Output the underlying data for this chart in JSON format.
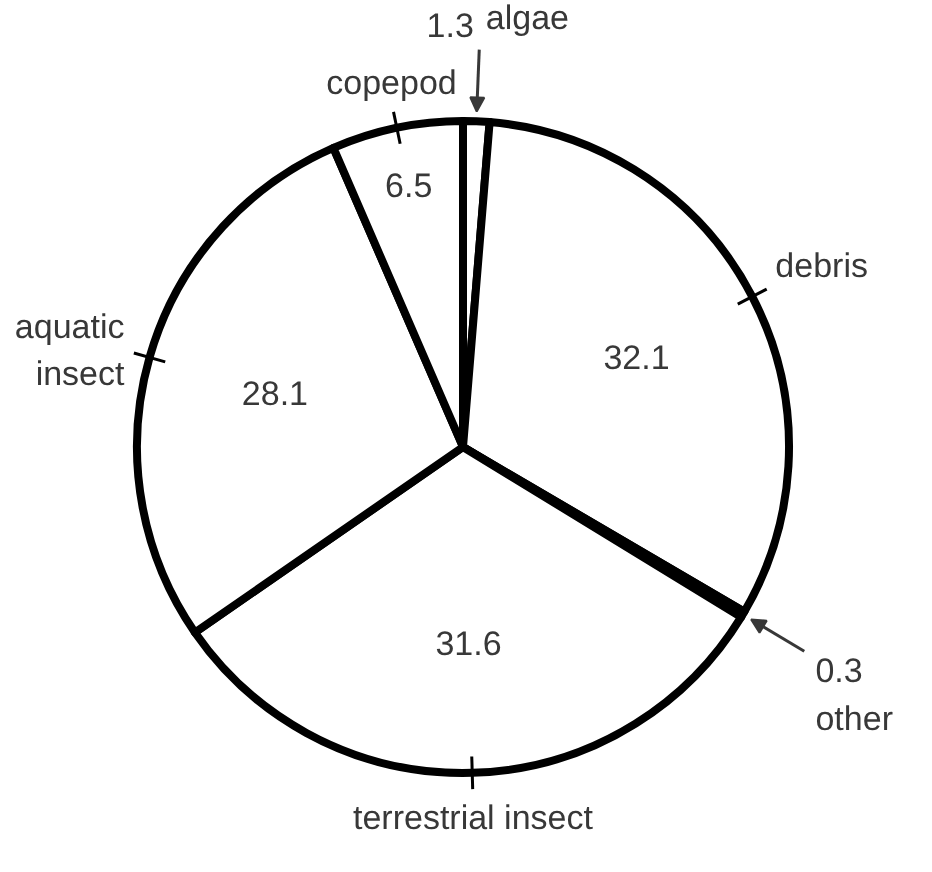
{
  "chart_data": {
    "type": "pie",
    "categories": [
      "algae",
      "debris",
      "other",
      "terrestrial insect",
      "aquatic insect",
      "copepod"
    ],
    "values": [
      1.3,
      32.1,
      0.3,
      31.6,
      28.1,
      6.5
    ],
    "colors": [
      "#ffffff",
      "#ffffff",
      "#ffffff",
      "#ffffff",
      "#ffffff",
      "#ffffff"
    ],
    "data_labels": true
  }
}
